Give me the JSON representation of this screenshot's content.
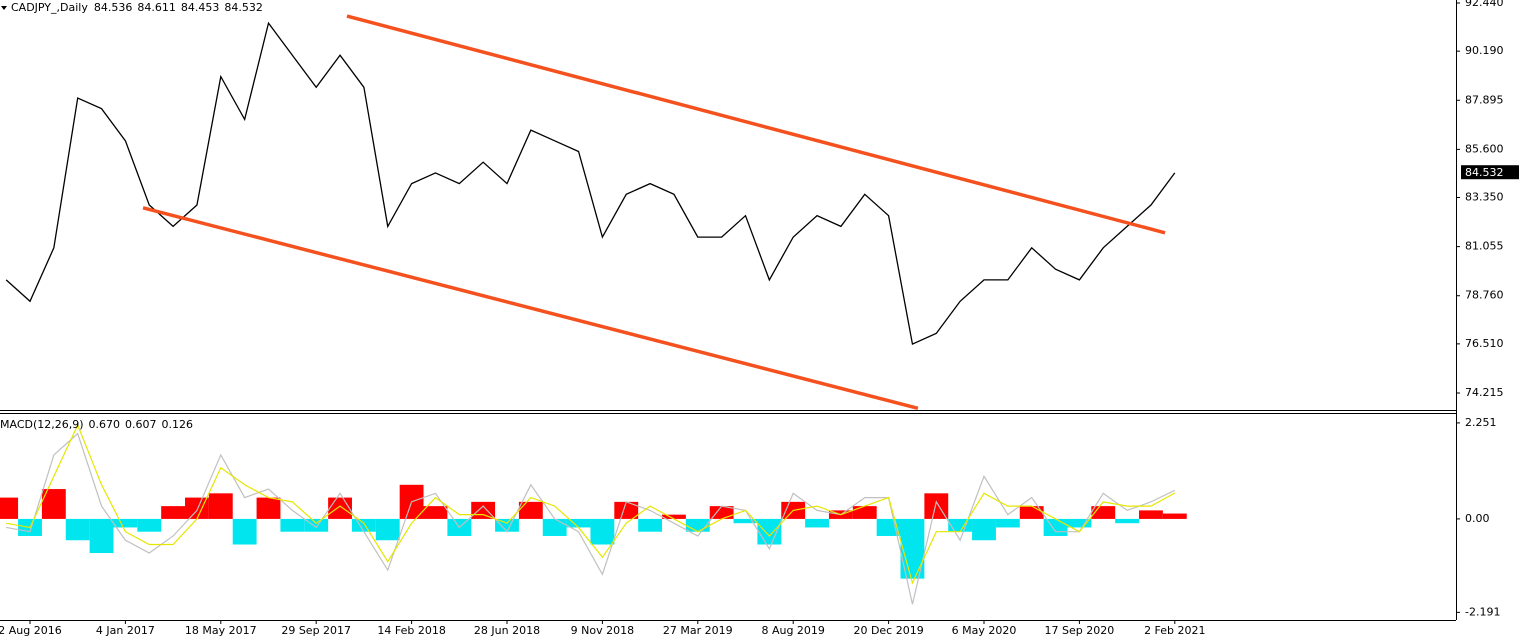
{
  "chart_data": [
    {
      "type": "line",
      "title": "CADJPY_,Daily",
      "header_values": [
        84.536,
        84.611,
        84.453,
        84.532
      ],
      "last_price": 84.532,
      "color": "#000000",
      "trendline_color": "#f4511e",
      "trendlines": [
        {
          "x": [
            14.29,
            48.59
          ],
          "y": [
            91.83,
            81.7
          ]
        },
        {
          "x": [
            5.74,
            38.23
          ],
          "y": [
            82.87,
            73.5
          ]
        }
      ],
      "categories": [
        null,
        "2 Aug 2016",
        null,
        null,
        null,
        "4 Jan 2017",
        null,
        null,
        null,
        "18 May 2017",
        null,
        null,
        null,
        "29 Sep 2017",
        null,
        null,
        null,
        "14 Feb 2018",
        null,
        null,
        null,
        "28 Jun 2018",
        null,
        null,
        null,
        "9 Nov 2018",
        null,
        null,
        null,
        "27 Mar 2019",
        null,
        null,
        null,
        "8 Aug 2019",
        null,
        null,
        null,
        "20 Dec 2019",
        null,
        null,
        null,
        "6 May 2020",
        null,
        null,
        null,
        "17 Sep 2020",
        null,
        null,
        null,
        "2 Feb 2021"
      ],
      "values": [
        79.5,
        78.5,
        81,
        88,
        87.5,
        86,
        83,
        82,
        83,
        89,
        87,
        91.5,
        90,
        88.5,
        90,
        88.5,
        82,
        84,
        84.5,
        84,
        85,
        84,
        86.5,
        86,
        85.5,
        81.5,
        83.5,
        84,
        83.5,
        81.5,
        81.5,
        82.5,
        79.5,
        81.5,
        82.5,
        82,
        83.5,
        82.5,
        76.5,
        77,
        78.5,
        79.5,
        79.5,
        81,
        80,
        79.5,
        81,
        82,
        83,
        84.5
      ],
      "ylim": [
        73.42,
        92.58
      ],
      "yticks": [
        74.215,
        {
          "value": 76.51,
          "label": "76.510"
        },
        {
          "value": 78.76,
          "label": "78.760"
        },
        81.055,
        {
          "value": 83.35,
          "label": "83.350"
        },
        {
          "value": 85.6,
          "label": "85.600"
        },
        87.895,
        {
          "value": 90.19,
          "label": "90.190"
        },
        {
          "value": 92.44,
          "label": "92.440"
        }
      ]
    },
    {
      "type": "macd",
      "title": "MACD(12,26,9)",
      "header_values": [
        {
          "value": 0.67,
          "label": "0.670"
        },
        0.607,
        0.126
      ],
      "positive_color": "#ff0000",
      "negative_color": "#00e5ee",
      "series": [
        {
          "color": "#c0c0c0",
          "values": [
            -0.2,
            -0.3,
            1.5,
            2.0,
            0.3,
            -0.5,
            -0.8,
            -0.4,
            0.2,
            1.5,
            0.5,
            0.7,
            0.2,
            -0.2,
            0.6,
            -0.3,
            -1.2,
            0.4,
            0.6,
            -0.2,
            0.3,
            -0.3,
            0.8,
            0,
            -0.3,
            -1.3,
            0.4,
            0.2,
            -0.1,
            -0.4,
            0.3,
            0.2,
            -0.7,
            0.6,
            0.2,
            0.1,
            0.5,
            0.5,
            -2.0,
            0.4,
            -0.5,
            1.0,
            0.1,
            0.5,
            -0.3,
            -0.3,
            0.6,
            0.2,
            0.4,
            0.67
          ]
        },
        {
          "color": "#e6e600",
          "values": [
            -0.1,
            -0.2,
            1.0,
            2.2,
            0.8,
            -0.3,
            -0.6,
            -0.6,
            0,
            1.2,
            0.8,
            0.5,
            0.4,
            -0.1,
            0.3,
            -0.1,
            -1.0,
            -0.1,
            0.5,
            0.1,
            0.1,
            -0.1,
            0.5,
            0.3,
            -0.2,
            -0.9,
            -0.1,
            0.3,
            0,
            -0.3,
            0,
            0.2,
            -0.4,
            0.2,
            0.3,
            0.1,
            0.3,
            0.5,
            -1.5,
            -0.3,
            -0.3,
            0.6,
            0.3,
            0.3,
            0,
            -0.3,
            0.4,
            0.3,
            0.3,
            0.607
          ]
        }
      ],
      "values": [
        0.5,
        -0.4,
        0.7,
        -0.5,
        -0.8,
        -0.2,
        -0.3,
        0.3,
        0.5,
        0.6,
        -0.6,
        0.5,
        -0.3,
        -0.3,
        0.5,
        -0.3,
        -0.5,
        0.8,
        0.3,
        -0.4,
        0.4,
        -0.3,
        0.4,
        -0.4,
        -0.2,
        -0.6,
        0.4,
        -0.3,
        0.1,
        -0.3,
        0.3,
        -0.1,
        -0.6,
        0.4,
        -0.2,
        0.2,
        0.3,
        -0.4,
        -1.4,
        0.6,
        -0.3,
        -0.5,
        -0.2,
        0.3,
        -0.4,
        -0.2,
        0.3,
        -0.1,
        0.2,
        0.126
      ],
      "ylim": [
        -2.37,
        2.46
      ],
      "yticks": [
        2.251,
        {
          "value": 0,
          "label": "0.00"
        },
        -2.191
      ]
    }
  ]
}
